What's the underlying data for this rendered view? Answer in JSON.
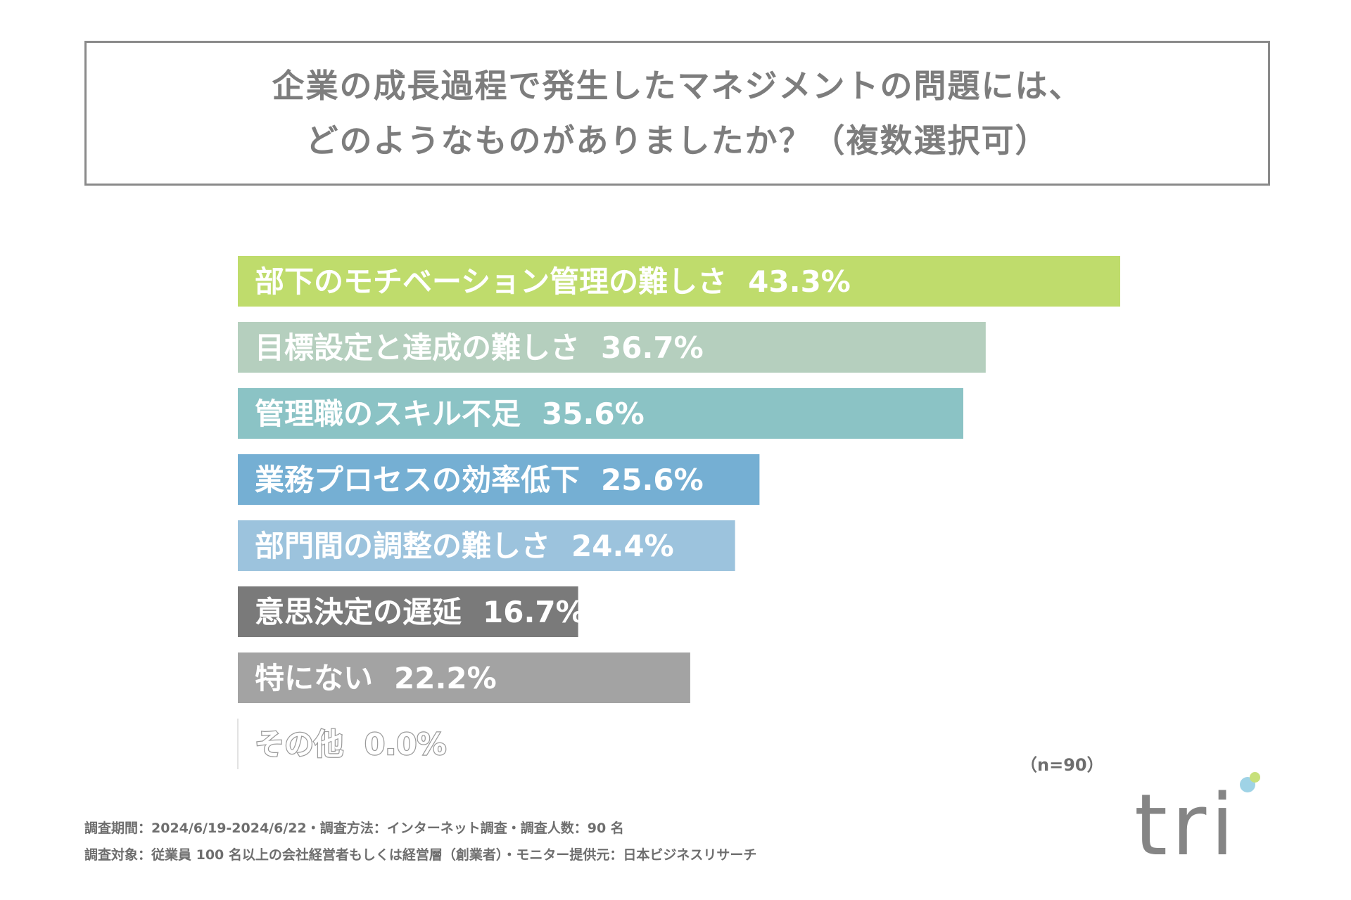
{
  "title": {
    "line1": "企業の成長過程で発生したマネジメントの問題には、",
    "line2": "どのようなものがありましたか？（複数選択可）"
  },
  "chart_data": {
    "type": "bar",
    "orientation": "horizontal",
    "title": "企業の成長過程で発生したマネジメントの問題には、どのようなものがありましたか？（複数選択可）",
    "unit": "%",
    "xlim": [
      0,
      43.3
    ],
    "grid": false,
    "bars": [
      {
        "label": "部下のモチベーション管理の難しさ",
        "value": 43.3,
        "value_label": "43.3%",
        "color": "#bfdc6c"
      },
      {
        "label": "目標設定と達成の難しさ",
        "value": 36.7,
        "value_label": "36.7%",
        "color": "#b5cfbe"
      },
      {
        "label": "管理職のスキル不足",
        "value": 35.6,
        "value_label": "35.6%",
        "color": "#8bc3c5"
      },
      {
        "label": "業務プロセスの効率低下",
        "value": 25.6,
        "value_label": "25.6%",
        "color": "#75afd3"
      },
      {
        "label": "部門間の調整の難しさ",
        "value": 24.4,
        "value_label": "24.4%",
        "color": "#9cc3dd"
      },
      {
        "label": "意思決定の遅延",
        "value": 16.7,
        "value_label": "16.7%",
        "color": "#7a7a7a"
      },
      {
        "label": "特にない",
        "value": 22.2,
        "value_label": "22.2%",
        "color": "#a3a3a3"
      },
      {
        "label": "その他",
        "value": 0.0,
        "value_label": "0.0%",
        "color": "#dcdcdc"
      }
    ]
  },
  "sample_size": "（n=90）",
  "footnotes": {
    "line1": "調査期間：2024/6/19-2024/6/22・調査方法：インターネット調査・調査人数：90 名",
    "line2": "調査対象：従業員 100 名以上の会社経営者もしくは経営層（創業者）・モニター提供元：日本ビジネスリサーチ"
  },
  "logo": {
    "text": "tri",
    "dot_colors": [
      "#9fd3e6",
      "#c7e07a"
    ]
  }
}
